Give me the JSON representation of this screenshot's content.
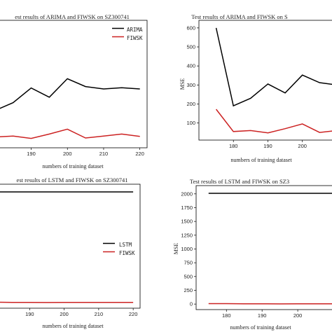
{
  "chart_data": [
    {
      "type": "line",
      "title": "est results of ARIMA and FIWSK on SZ300741",
      "xlabel": "numbers of training dataset",
      "ylabel": "",
      "xlim": [
        181,
        222
      ],
      "ylim": [
        0,
        650
      ],
      "xticks": [
        190,
        200,
        210,
        220
      ],
      "yticks": [],
      "legend": "top-right",
      "x": [
        180,
        185,
        190,
        195,
        200,
        205,
        210,
        215,
        220
      ],
      "series": [
        {
          "name": "ARIMA",
          "color": "#000000",
          "values": [
            190,
            230,
            305,
            258,
            352,
            312,
            300,
            306,
            300
          ]
        },
        {
          "name": "FIWSK",
          "color": "#cc2222",
          "values": [
            55,
            60,
            48,
            70,
            95,
            50,
            60,
            70,
            58
          ]
        }
      ]
    },
    {
      "type": "line",
      "title": "Test results of ARIMA and FIWSK on S",
      "xlabel": "numbers of training dataset",
      "ylabel": "MSE",
      "xlim": [
        170,
        209
      ],
      "ylim": [
        10,
        640
      ],
      "xticks": [
        180,
        190,
        200
      ],
      "yticks": [
        100,
        200,
        300,
        400,
        500,
        600
      ],
      "legend": "",
      "x": [
        175,
        180,
        185,
        190,
        195,
        200,
        205,
        210
      ],
      "series": [
        {
          "name": "ARIMA",
          "color": "#000000",
          "values": [
            600,
            190,
            230,
            305,
            258,
            352,
            312,
            300
          ]
        },
        {
          "name": "FIWSK",
          "color": "#cc2222",
          "values": [
            172,
            55,
            60,
            48,
            70,
            95,
            50,
            60
          ]
        }
      ]
    },
    {
      "type": "line",
      "title": "est results of LSTM and FIWSK on SZ300741",
      "xlabel": "numbers of training dataset",
      "ylabel": "",
      "xlim": [
        181,
        222
      ],
      "ylim": [
        -100,
        2150
      ],
      "xticks": [
        190,
        200,
        210,
        220
      ],
      "yticks": [],
      "legend": "right",
      "x": [
        175,
        180,
        185,
        190,
        195,
        200,
        205,
        210,
        215,
        220
      ],
      "series": [
        {
          "name": "LSTM",
          "color": "#000000",
          "values": [
            2010,
            2010,
            2010,
            2010,
            2010,
            2010,
            2010,
            2010,
            2010,
            2010
          ]
        },
        {
          "name": "FIWSK",
          "color": "#cc2222",
          "values": [
            8,
            8,
            6,
            5,
            3,
            4,
            6,
            6,
            6,
            5
          ]
        }
      ]
    },
    {
      "type": "line",
      "title": "Test results of LSTM and FIWSK on SZ3",
      "xlabel": "numbers of training dataset",
      "ylabel": "MSE",
      "xlim": [
        171.5,
        210
      ],
      "ylim": [
        -100,
        2150
      ],
      "xticks": [
        180,
        190,
        200
      ],
      "yticks": [
        0,
        250,
        500,
        750,
        1000,
        1250,
        1500,
        1750,
        2000
      ],
      "legend": "",
      "x": [
        175,
        180,
        185,
        190,
        195,
        200,
        205,
        210
      ],
      "series": [
        {
          "name": "LSTM",
          "color": "#000000",
          "values": [
            2010,
            2010,
            2010,
            2010,
            2010,
            2010,
            2010,
            2010
          ]
        },
        {
          "name": "FIWSK",
          "color": "#cc2222",
          "values": [
            8,
            8,
            6,
            5,
            3,
            4,
            6,
            6
          ]
        }
      ]
    }
  ]
}
